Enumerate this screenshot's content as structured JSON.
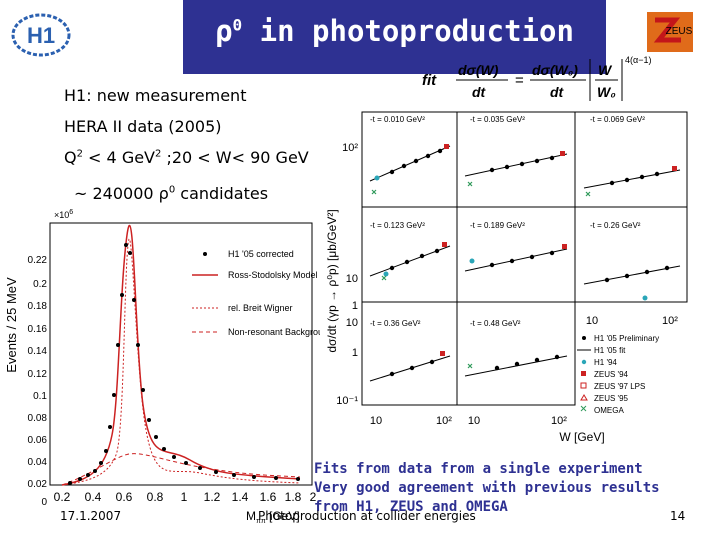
{
  "slide": {
    "title_base": "ρ",
    "title_sup": "0",
    "title_rest": " in photoproduction",
    "logo_h1": "H1",
    "logo_zeus": "ZEUS",
    "fit_label": "fit",
    "fit_exp": "4(α−1)",
    "lines": {
      "h1_new": "H1: new measurement",
      "hera": "HERA II data (2005)",
      "q2_a": "Q",
      "q2_b": "2",
      "q2_c": " < 4 GeV",
      "q2_d": "2",
      "q2_e": " ;20 < W< 90 GeV",
      "cand_a": "~ 240000 ρ",
      "cand_b": "0",
      "cand_c": " candidates"
    },
    "fits_text": [
      "Fits from data from a single experiment",
      "Very good agreement with previous results",
      "from H1, ZEUS and OMEGA"
    ],
    "footer_date": "17.1.2007",
    "footer_center": "Photoproduction at collider energies",
    "page_number": "14"
  },
  "left_plot": {
    "ylabel": "Events / 25 MeV",
    "xlabel": "M",
    "xlabel_sub": "ππ",
    "xlabel_unit": " [GeV]",
    "scale_label": "×10",
    "scale_exp": "6",
    "yticks": [
      "0.22",
      "0.2",
      "0.18",
      "0.16",
      "0.14",
      "0.12",
      "0.1",
      "0.08",
      "0.06",
      "0.04",
      "0.02",
      "0"
    ],
    "xticks": [
      "0.2",
      "0.4",
      "0.6",
      "0.8",
      "1",
      "1.2",
      "1.4",
      "1.6",
      "1.8",
      "2"
    ],
    "legend": [
      "H1 '05 corrected",
      "Ross-Stodolsky Model",
      "rel. Breit Wigner",
      "Non-resonant Background"
    ]
  },
  "right_plot": {
    "ylabel": "dσ/dt (γp → ρ⁰p) [μb/GeV²]",
    "xlabel": "W [GeV]",
    "panel_labels": [
      "-t = 0.010 GeV²",
      "-t = 0.035 GeV²",
      "-t = 0.069 GeV²",
      "-t = 0.123 GeV²",
      "-t = 0.189 GeV²",
      "-t = 0.26 GeV²",
      "-t = 0.36 GeV²",
      "-t = 0.48 GeV²"
    ],
    "yticks": [
      "10²",
      "10",
      "1",
      "10",
      "1",
      "10⁻¹",
      "10⁻¹"
    ],
    "xticks": [
      "10",
      "10²",
      "10",
      "10²",
      "10",
      "10²"
    ],
    "legend": [
      "H1 '05 Preliminary",
      "H1 '05 fit",
      "H1 '94",
      "ZEUS '94",
      "ZEUS '97 LPS",
      "ZEUS '95",
      "OMEGA"
    ]
  },
  "colors": {
    "title_bar": "#2e3192",
    "fits_text": "#2e3192",
    "fit_line": "#cc2222",
    "h1_point": "#000000",
    "zeus_point": "#cc2222",
    "h1_94": "#2aa6b8",
    "omega": "#2f9a5a"
  }
}
